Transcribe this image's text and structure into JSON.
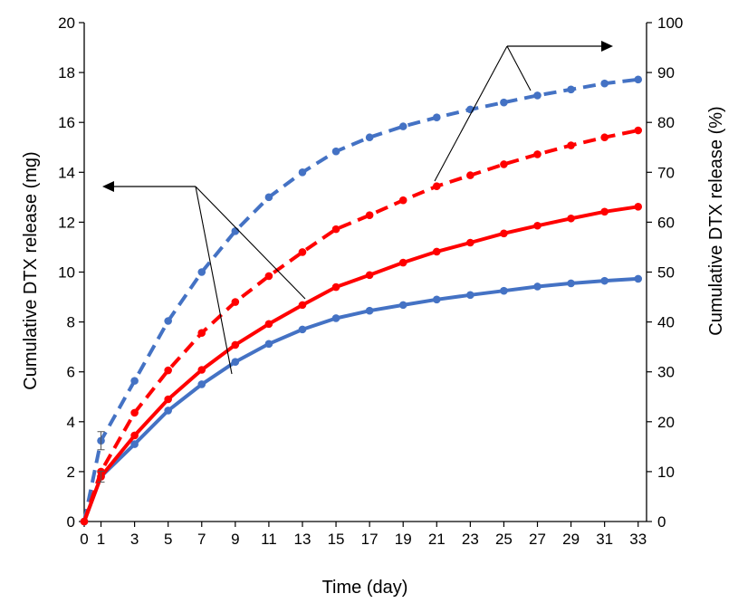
{
  "chart_data": {
    "type": "line",
    "x": [
      0,
      1,
      3,
      5,
      7,
      9,
      11,
      13,
      15,
      17,
      19,
      21,
      23,
      25,
      27,
      29,
      31,
      33
    ],
    "xlabel": "Time (day)",
    "ylabel_left": "Cumulative DTX release (mg)",
    "ylabel_right": "Cumulative DTX release (%)",
    "ylim_left": [
      0,
      20
    ],
    "ylim_right": [
      0,
      100
    ],
    "yticks_left": [
      0,
      2,
      4,
      6,
      8,
      10,
      12,
      14,
      16,
      18,
      20
    ],
    "yticks_right": [
      0,
      10,
      20,
      30,
      40,
      50,
      60,
      70,
      80,
      90,
      100
    ],
    "xticks": [
      0,
      1,
      3,
      5,
      7,
      9,
      11,
      13,
      15,
      17,
      19,
      21,
      23,
      25,
      27,
      29,
      31,
      33
    ],
    "grid": false,
    "legend": "none",
    "series": [
      {
        "axis": "left",
        "color": "#4472C4",
        "style": "solid",
        "values": [
          0,
          1.8,
          3.1,
          4.45,
          5.5,
          6.4,
          7.12,
          7.7,
          8.15,
          8.45,
          8.68,
          8.9,
          9.08,
          9.25,
          9.42,
          9.55,
          9.65,
          9.73
        ]
      },
      {
        "axis": "left",
        "color": "#FF0000",
        "style": "solid",
        "values": [
          0,
          1.8,
          3.45,
          4.9,
          6.08,
          7.08,
          7.92,
          8.68,
          9.4,
          9.88,
          10.38,
          10.82,
          11.18,
          11.55,
          11.86,
          12.15,
          12.42,
          12.62
        ]
      },
      {
        "axis": "right",
        "color": "#4472C4",
        "style": "dashed",
        "values": [
          0,
          16.2,
          28.2,
          40.2,
          50.0,
          58.2,
          65.0,
          70.0,
          74.2,
          77.0,
          79.2,
          81.0,
          82.6,
          84.0,
          85.4,
          86.6,
          87.8,
          88.6
        ]
      },
      {
        "axis": "right",
        "color": "#FF0000",
        "style": "dashed",
        "values": [
          0,
          10.0,
          21.8,
          30.3,
          37.8,
          44.0,
          49.2,
          54.0,
          58.6,
          61.4,
          64.4,
          67.2,
          69.4,
          71.6,
          73.6,
          75.4,
          77.0,
          78.4
        ]
      }
    ],
    "annotations": [
      {
        "label": "arrow-left-axis",
        "pointer": "left"
      },
      {
        "label": "arrow-right-axis",
        "pointer": "right"
      }
    ]
  }
}
